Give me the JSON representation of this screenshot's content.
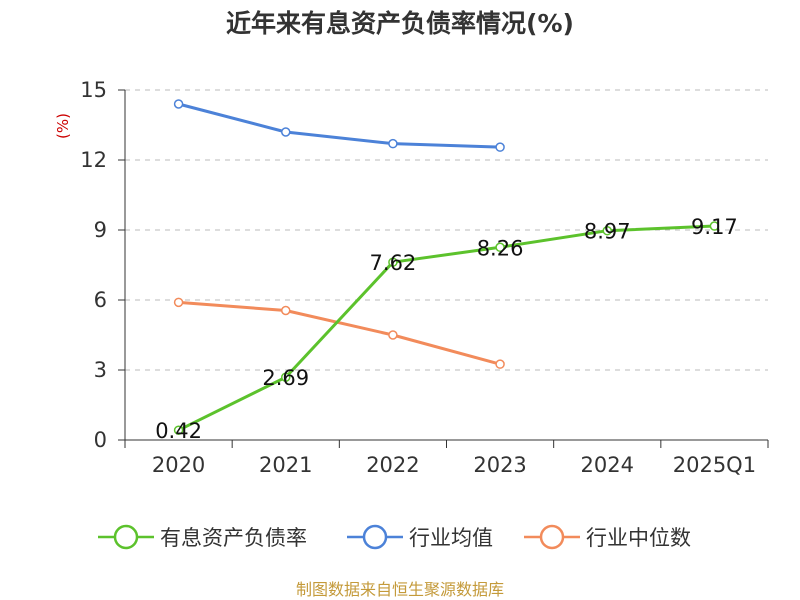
{
  "chart_data": {
    "type": "line",
    "title": "近年来有息资产负债率情况(%)",
    "ylabel": "(%)",
    "xlabel": "",
    "categories": [
      "2020",
      "2021",
      "2022",
      "2023",
      "2024",
      "2025Q1"
    ],
    "ylim": [
      0,
      15
    ],
    "yticks": [
      0,
      3,
      6,
      9,
      12,
      15
    ],
    "grid": true,
    "legend_position": "bottom",
    "series": [
      {
        "name": "有息资产负债率",
        "color": "#5cc22c",
        "values": [
          0.42,
          2.69,
          7.62,
          8.26,
          8.97,
          9.17
        ],
        "labels": [
          "0.42",
          "2.69",
          "7.62",
          "8.26",
          "8.97",
          "9.17"
        ]
      },
      {
        "name": "行业均值",
        "color": "#4c82d8",
        "values": [
          14.4,
          13.2,
          12.7,
          12.55,
          null,
          null
        ]
      },
      {
        "name": "行业中位数",
        "color": "#f28b5b",
        "values": [
          5.9,
          5.55,
          4.5,
          3.25,
          null,
          null
        ]
      }
    ]
  },
  "source": "制图数据来自恒生聚源数据库"
}
